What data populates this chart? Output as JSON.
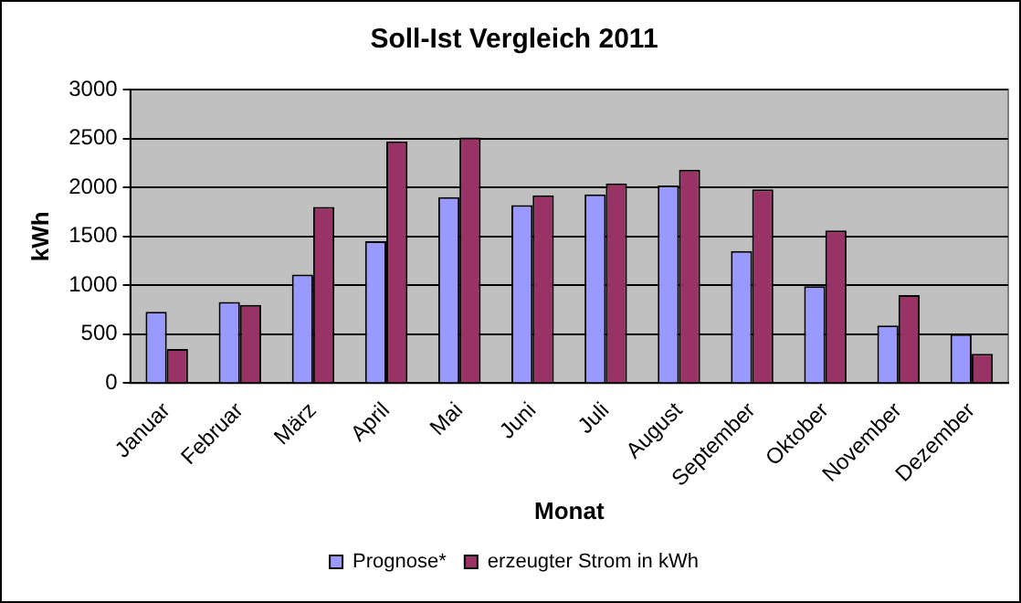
{
  "chart_data": {
    "type": "bar",
    "title": "Soll-Ist Vergleich 2011",
    "xlabel": "Monat",
    "ylabel": "kWh",
    "categories": [
      "Januar",
      "Februar",
      "März",
      "April",
      "Mai",
      "Juni",
      "Juli",
      "August",
      "September",
      "Oktober",
      "November",
      "Dezember"
    ],
    "series": [
      {
        "name": "Prognose*",
        "color": "#9999ff",
        "values": [
          730,
          830,
          1110,
          1450,
          1900,
          1820,
          1930,
          2020,
          1350,
          990,
          590,
          500
        ]
      },
      {
        "name": "erzeugter Strom in kWh",
        "color": "#993366",
        "values": [
          350,
          800,
          1800,
          2470,
          2510,
          1920,
          2040,
          2180,
          1980,
          1560,
          900,
          300
        ]
      }
    ],
    "ylim": [
      0,
      3000
    ],
    "yticks": [
      0,
      500,
      1000,
      1500,
      2000,
      2500,
      3000
    ],
    "grid": "y",
    "legend": "bottom"
  }
}
